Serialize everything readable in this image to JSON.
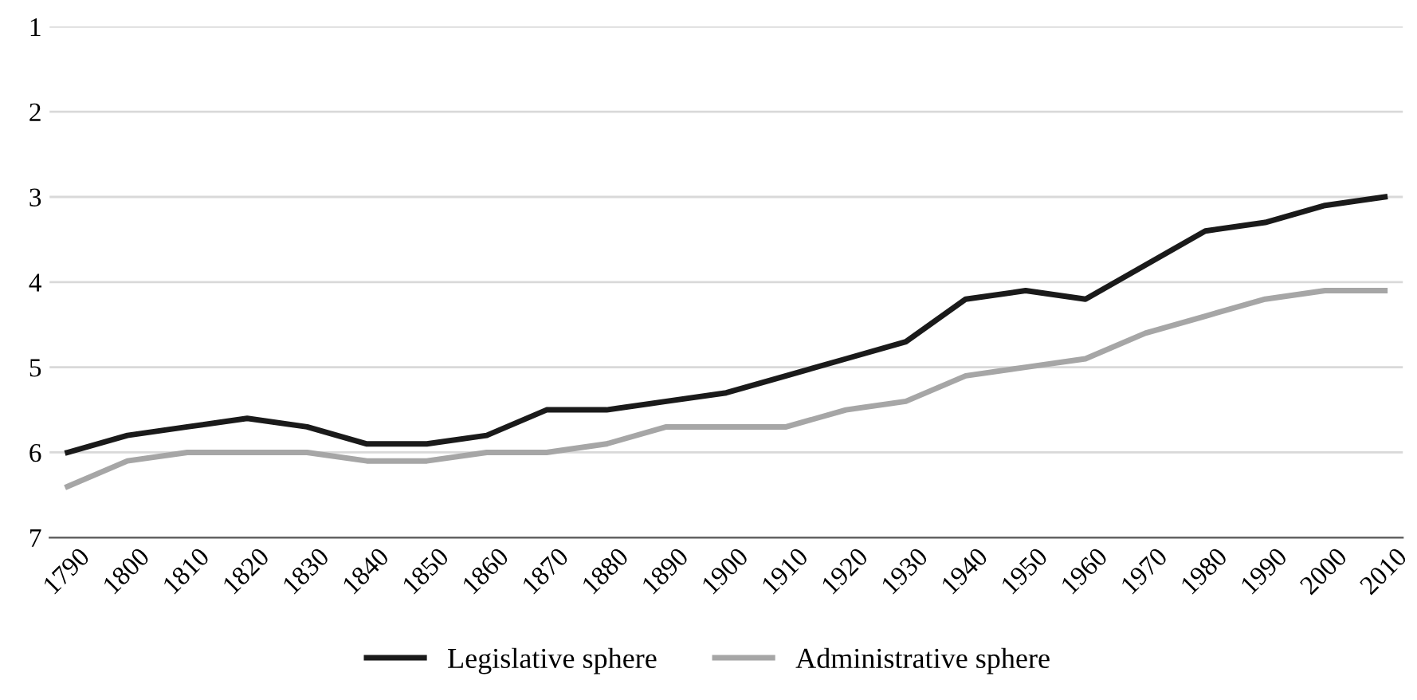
{
  "chart_data": {
    "type": "line",
    "categories": [
      "1790",
      "1800",
      "1810",
      "1820",
      "1830",
      "1840",
      "1850",
      "1860",
      "1870",
      "1880",
      "1890",
      "1900",
      "1910",
      "1920",
      "1930",
      "1940",
      "1950",
      "1960",
      "1970",
      "1980",
      "1990",
      "2000",
      "2010"
    ],
    "series": [
      {
        "name": "Legislative sphere",
        "color": "#1a1a1a",
        "values": [
          6.0,
          5.8,
          5.7,
          5.6,
          5.7,
          5.9,
          5.9,
          5.8,
          5.5,
          5.5,
          5.4,
          5.3,
          5.1,
          4.9,
          4.7,
          4.2,
          4.1,
          4.2,
          3.8,
          3.4,
          3.3,
          3.1,
          3.0
        ]
      },
      {
        "name": "Administrative sphere",
        "color": "#a6a6a6",
        "values": [
          6.4,
          6.1,
          6.0,
          6.0,
          6.0,
          6.1,
          6.1,
          6.0,
          6.0,
          5.9,
          5.7,
          5.7,
          5.7,
          5.5,
          5.4,
          5.1,
          5.0,
          4.9,
          4.6,
          4.4,
          4.2,
          4.1,
          4.1
        ]
      }
    ],
    "ylim": [
      7,
      1
    ],
    "yticks": [
      1,
      2,
      3,
      4,
      5,
      6,
      7
    ],
    "grid": "y",
    "legend": "bottom",
    "marker": "none",
    "line_style": "solid"
  }
}
